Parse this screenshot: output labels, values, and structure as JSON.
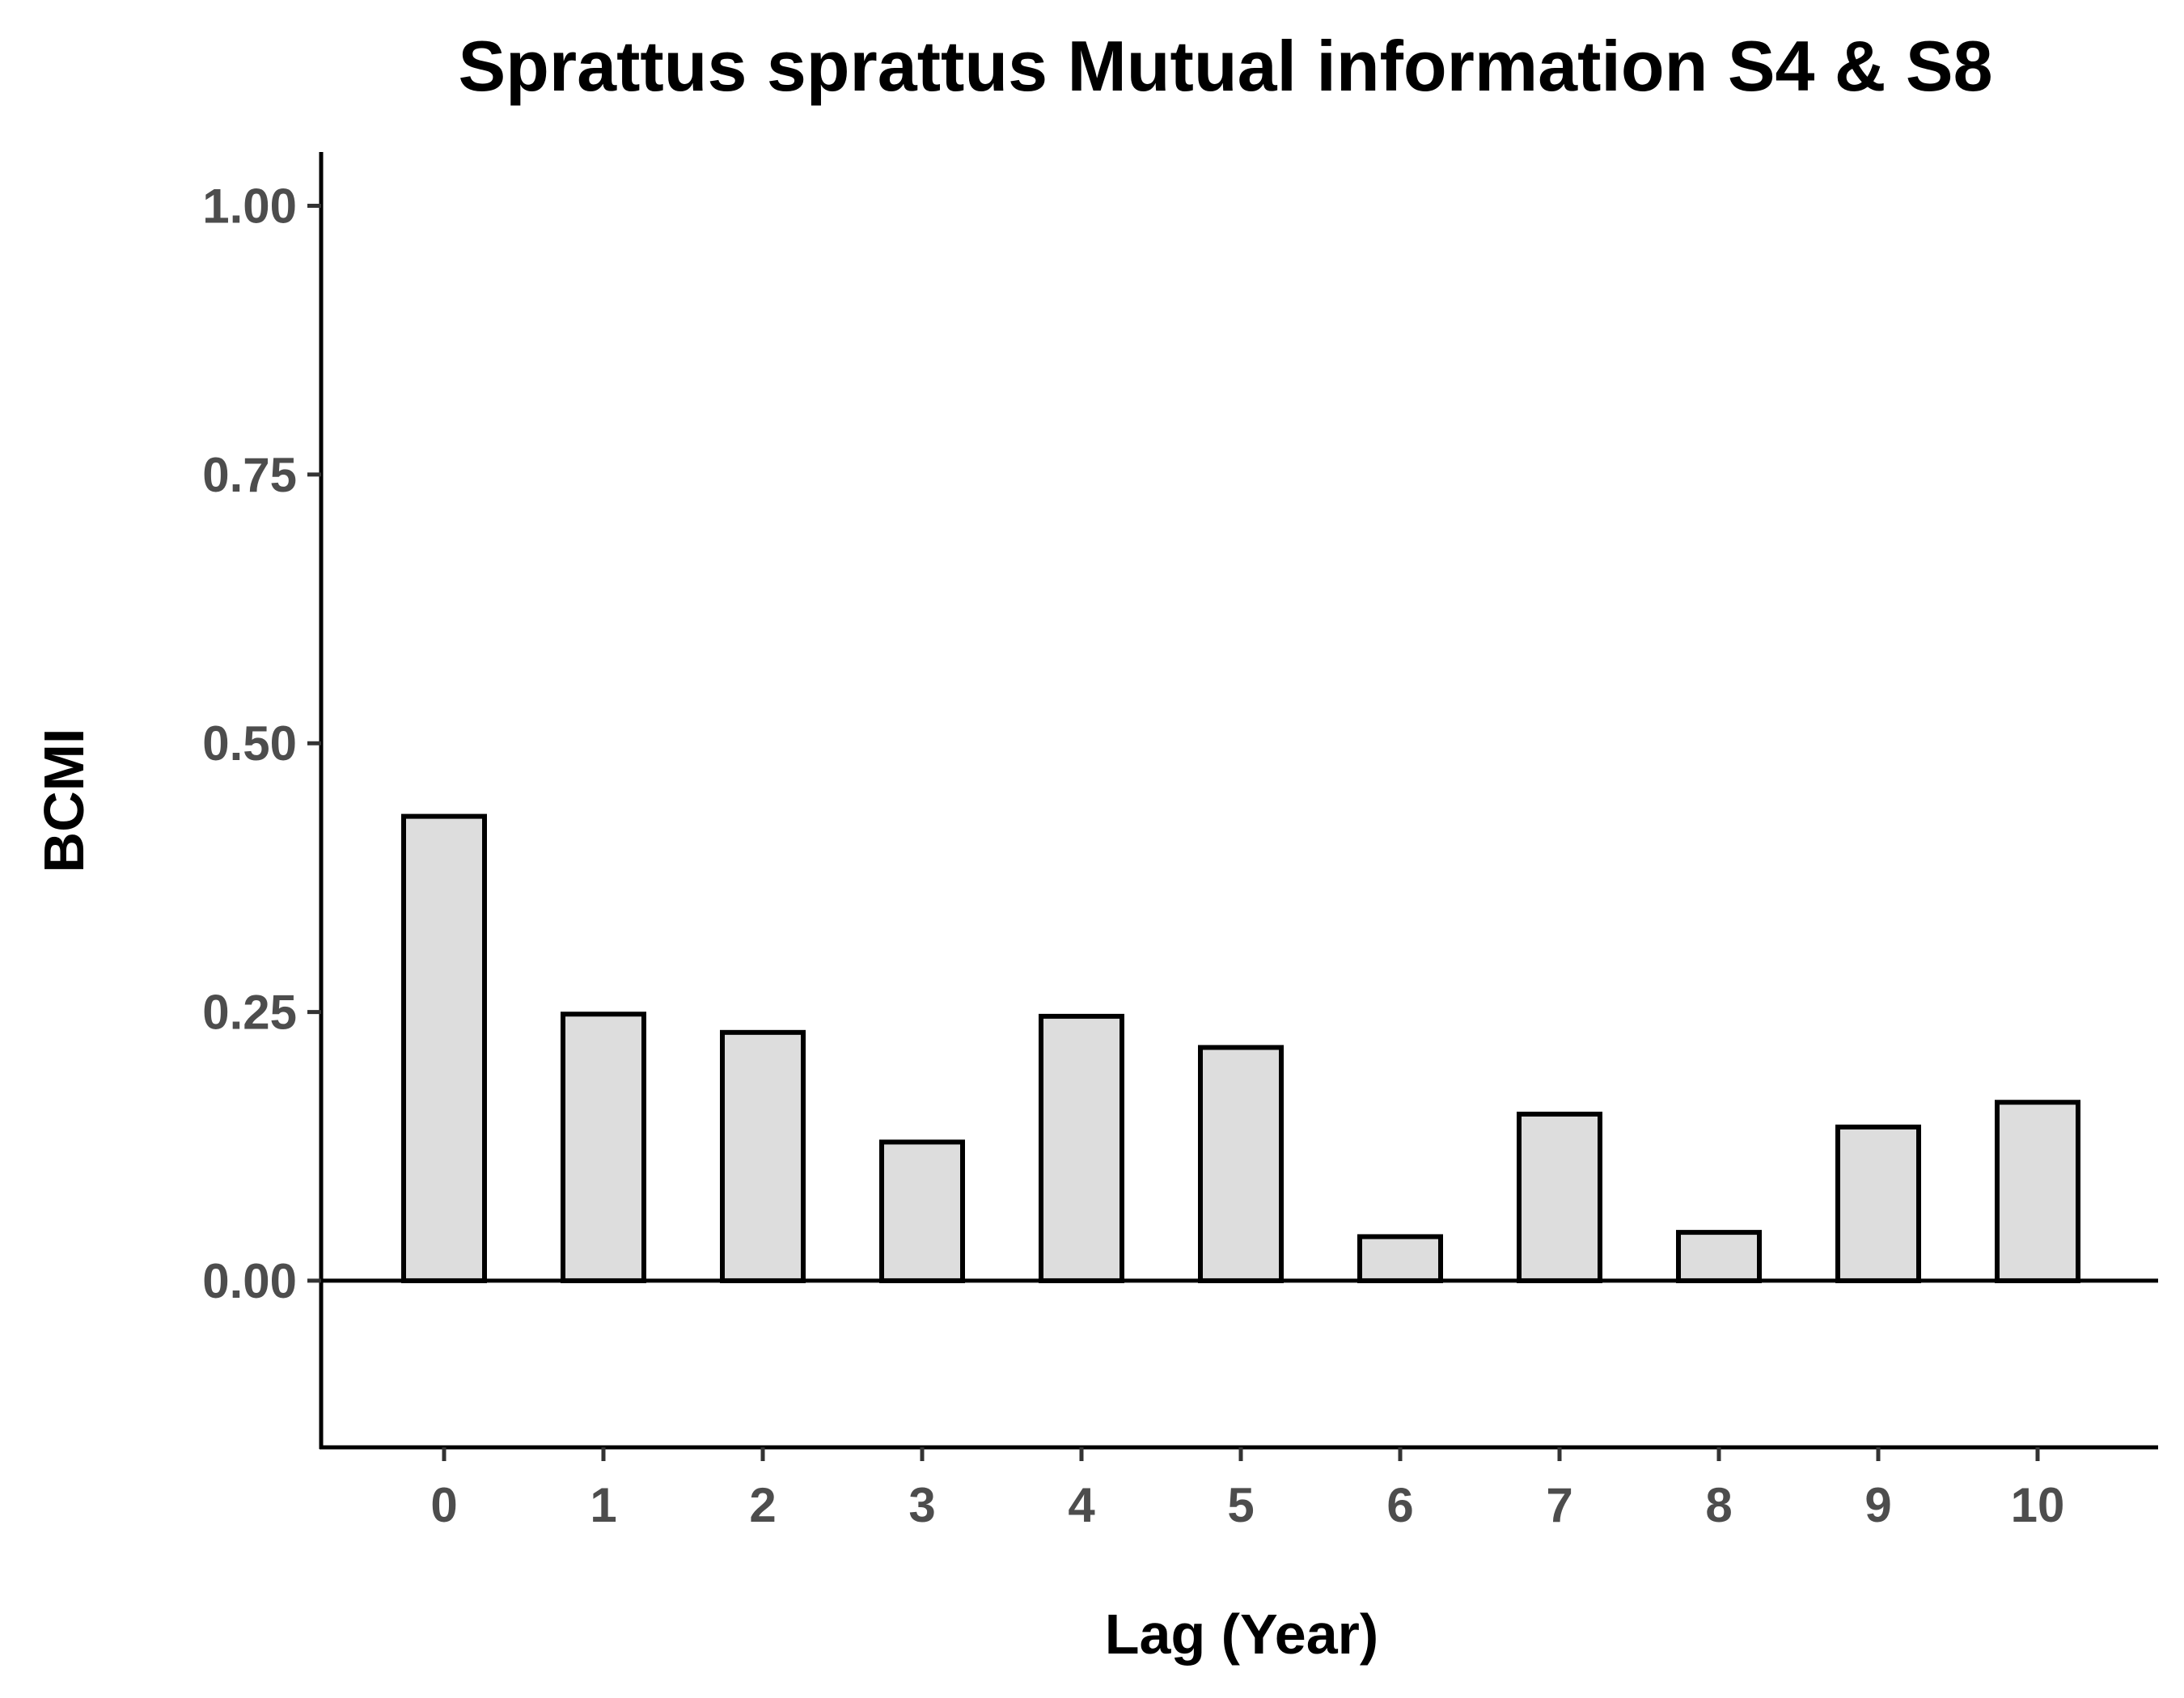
{
  "chart_data": {
    "type": "bar",
    "title": "Sprattus sprattus Mutual information S4 & S8",
    "xlabel": "Lag (Year)",
    "ylabel": "BCMI",
    "categories": [
      "0",
      "1",
      "2",
      "3",
      "4",
      "5",
      "6",
      "7",
      "8",
      "9",
      "10"
    ],
    "values": [
      0.432,
      0.248,
      0.231,
      0.129,
      0.246,
      0.217,
      0.041,
      0.155,
      0.045,
      0.143,
      0.166
    ],
    "ylim": [
      -0.155,
      1.05
    ],
    "yticks": [
      0.0,
      0.25,
      0.5,
      0.75,
      1.0
    ],
    "ytick_labels": [
      "0.00",
      "0.25",
      "0.50",
      "0.75",
      "1.00"
    ],
    "reference_line": 0,
    "bar_fill": "#dddddd",
    "bar_stroke": "#000000",
    "grid": false,
    "legend": false
  }
}
